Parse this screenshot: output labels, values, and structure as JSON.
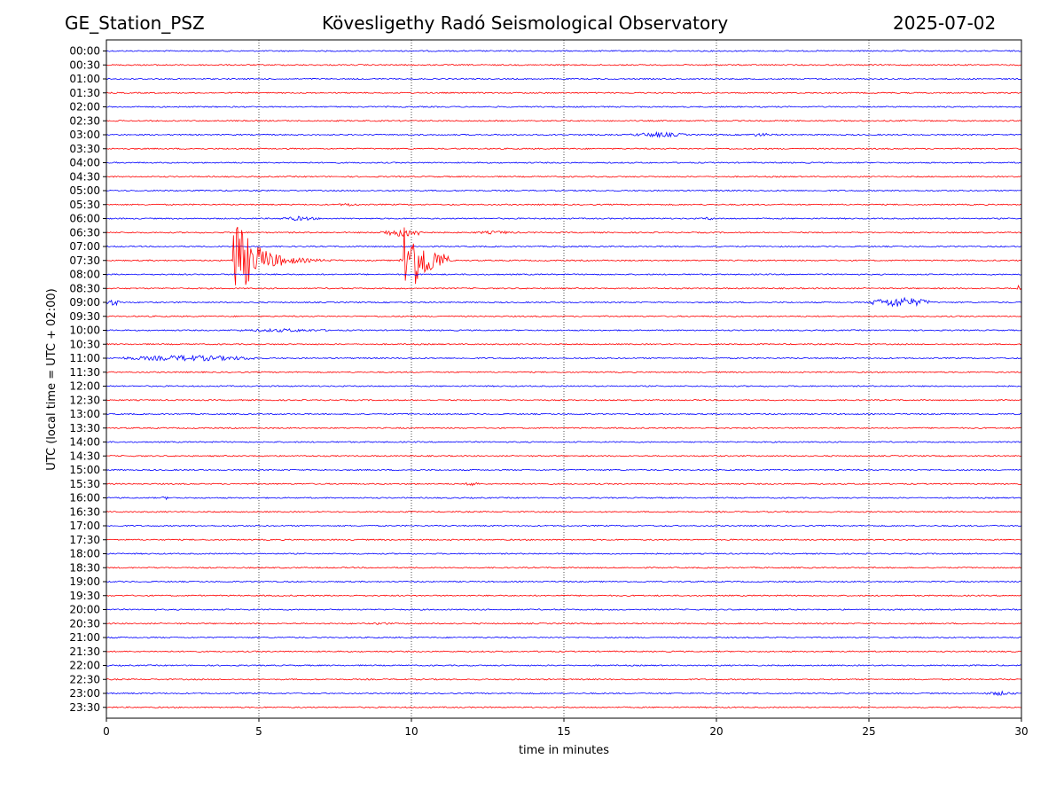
{
  "header": {
    "station": "GE_Station_PSZ",
    "observatory": "Kövesligethy Radó Seismological Observatory",
    "date": "2025-07-02"
  },
  "chart_data": {
    "type": "line",
    "subtype": "helicorder",
    "xlabel": "time in minutes",
    "ylabel": "UTC (local time = UTC + 02:00)",
    "xlim": [
      0,
      30
    ],
    "xticks": [
      0,
      5,
      10,
      15,
      20,
      25,
      30
    ],
    "x_gridlines": [
      5,
      10,
      15,
      20,
      25
    ],
    "grid": "vertical dotted at 5-minute intervals",
    "trace_colors": {
      "even_hour": "#0000ff",
      "half_hour": "#ff0000"
    },
    "rows": [
      "00:00",
      "00:30",
      "01:00",
      "01:30",
      "02:00",
      "02:30",
      "03:00",
      "03:30",
      "04:00",
      "04:30",
      "05:00",
      "05:30",
      "06:00",
      "06:30",
      "07:00",
      "07:30",
      "08:00",
      "08:30",
      "09:00",
      "09:30",
      "10:00",
      "10:30",
      "11:00",
      "11:30",
      "12:00",
      "12:30",
      "13:00",
      "13:30",
      "14:00",
      "14:30",
      "15:00",
      "15:30",
      "16:00",
      "16:30",
      "17:00",
      "17:30",
      "18:00",
      "18:30",
      "19:00",
      "19:30",
      "20:00",
      "20:30",
      "21:00",
      "21:30",
      "22:00",
      "22:30",
      "23:00",
      "23:30"
    ],
    "events": [
      {
        "row": "03:00",
        "start_min": 17.2,
        "end_min": 19.0,
        "amplitude": 3
      },
      {
        "row": "03:00",
        "start_min": 20.9,
        "end_min": 22.0,
        "amplitude": 2
      },
      {
        "row": "05:30",
        "start_min": 7.6,
        "end_min": 8.3,
        "amplitude": 2
      },
      {
        "row": "06:00",
        "start_min": 5.6,
        "end_min": 7.0,
        "amplitude": 2.5
      },
      {
        "row": "06:00",
        "start_min": 19.5,
        "end_min": 20.0,
        "amplitude": 2
      },
      {
        "row": "06:30",
        "start_min": 9.0,
        "end_min": 10.5,
        "amplitude": 5
      },
      {
        "row": "06:30",
        "start_min": 12.0,
        "end_min": 13.5,
        "amplitude": 2
      },
      {
        "row": "07:30",
        "start_min": 4.1,
        "end_min": 9.0,
        "amplitude": 50,
        "onset_min": 4.15
      },
      {
        "row": "07:30",
        "start_min": 9.6,
        "end_min": 11.2,
        "amplitude": 48,
        "onset_min": 9.75
      },
      {
        "row": "09:00",
        "start_min": 0.0,
        "end_min": 0.5,
        "amplitude": 4
      },
      {
        "row": "09:00",
        "start_min": 25.0,
        "end_min": 27.0,
        "amplitude": 6
      },
      {
        "row": "08:30",
        "start_min": 29.8,
        "end_min": 30.0,
        "amplitude": 4
      },
      {
        "row": "10:00",
        "start_min": 4.0,
        "end_min": 7.5,
        "amplitude": 2
      },
      {
        "row": "11:00",
        "start_min": 0.5,
        "end_min": 5.0,
        "amplitude": 3.5
      },
      {
        "row": "15:30",
        "start_min": 11.8,
        "end_min": 12.2,
        "amplitude": 3
      },
      {
        "row": "16:00",
        "start_min": 1.8,
        "end_min": 2.1,
        "amplitude": 2
      },
      {
        "row": "20:30",
        "start_min": 8.8,
        "end_min": 9.3,
        "amplitude": 2
      },
      {
        "row": "23:00",
        "start_min": 28.8,
        "end_min": 29.8,
        "amplitude": 2.5
      }
    ]
  }
}
